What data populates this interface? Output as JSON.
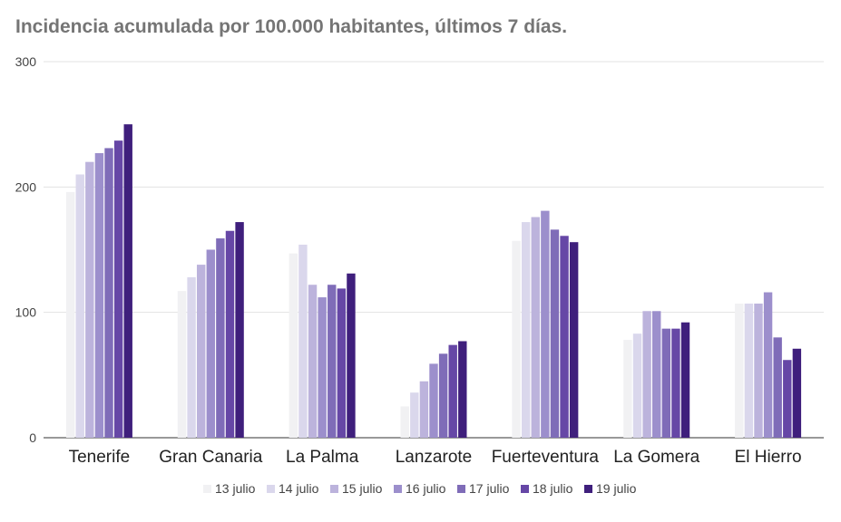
{
  "chart_data": {
    "type": "bar",
    "title": "Incidencia acumulada por 100.000 habitantes, últimos 7 días.",
    "xlabel": "",
    "ylabel": "",
    "ylim": [
      0,
      300
    ],
    "yticks": [
      "0",
      "100",
      "200",
      "300"
    ],
    "grid": true,
    "legend_position": "bottom",
    "categories": [
      "Tenerife",
      "Gran Canaria",
      "La Palma",
      "Lanzarote",
      "Fuerteventura",
      "La Gomera",
      "El Hierro"
    ],
    "series": [
      {
        "name": "13 julio",
        "color": "#f1f1f3",
        "values": [
          196,
          117,
          147,
          25,
          157,
          78,
          107
        ]
      },
      {
        "name": "14 julio",
        "color": "#dad7ec",
        "values": [
          210,
          128,
          154,
          36,
          172,
          83,
          107
        ]
      },
      {
        "name": "15 julio",
        "color": "#bcb3dc",
        "values": [
          220,
          138,
          122,
          45,
          176,
          101,
          107
        ]
      },
      {
        "name": "16 julio",
        "color": "#9c8fcc",
        "values": [
          227,
          150,
          112,
          59,
          181,
          101,
          116
        ]
      },
      {
        "name": "17 julio",
        "color": "#7f6cb8",
        "values": [
          231,
          159,
          122,
          67,
          166,
          87,
          80
        ]
      },
      {
        "name": "18 julio",
        "color": "#6647a6",
        "values": [
          237,
          165,
          119,
          74,
          161,
          87,
          62
        ]
      },
      {
        "name": "19 julio",
        "color": "#3f1f7c",
        "values": [
          250,
          172,
          131,
          77,
          156,
          92,
          71
        ]
      }
    ]
  }
}
